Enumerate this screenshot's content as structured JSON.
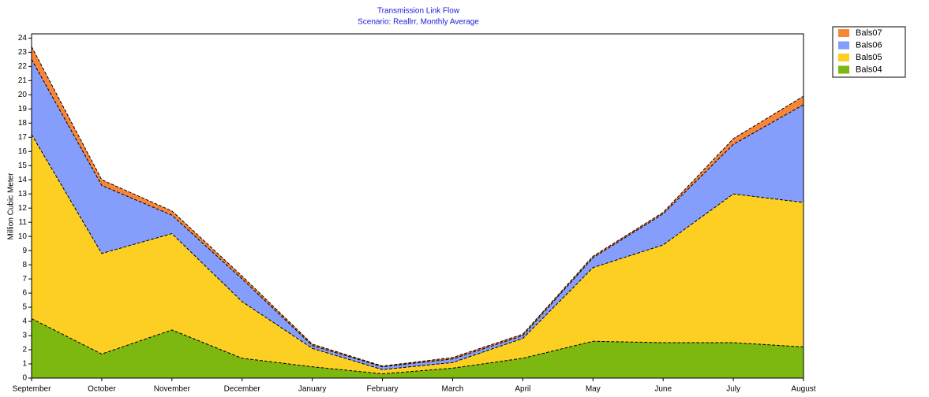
{
  "chart_data": {
    "type": "stacked-area",
    "title": "Transmission Link Flow",
    "subtitle": "Scenario: Reallrr,  Monthly Average",
    "y_label": "Million Cubic Meter",
    "categories": [
      "September",
      "October",
      "November",
      "December",
      "January",
      "February",
      "March",
      "April",
      "May",
      "June",
      "July",
      "August"
    ],
    "series": [
      {
        "name": "Bals04",
        "color": "#7cb810",
        "values": [
          4.2,
          1.7,
          3.4,
          1.4,
          0.8,
          0.3,
          0.7,
          1.4,
          2.6,
          2.5,
          2.5,
          2.2
        ]
      },
      {
        "name": "Bals05",
        "color": "#fccf22",
        "values": [
          13.0,
          7.1,
          6.8,
          4.0,
          1.3,
          0.3,
          0.4,
          1.4,
          5.2,
          6.9,
          10.5,
          10.2
        ]
      },
      {
        "name": "Bals06",
        "color": "#859dfb",
        "values": [
          5.3,
          4.8,
          1.3,
          1.6,
          0.2,
          0.2,
          0.25,
          0.2,
          0.7,
          2.2,
          3.5,
          6.9
        ]
      },
      {
        "name": "Bals07",
        "color": "#f98636",
        "values": [
          0.9,
          0.4,
          0.3,
          0.2,
          0.1,
          0.05,
          0.1,
          0.1,
          0.1,
          0.1,
          0.4,
          0.6
        ]
      }
    ],
    "ylim": [
      0,
      24.3
    ],
    "yticks": [
      0,
      1,
      2,
      3,
      4,
      5,
      6,
      7,
      8,
      9,
      10,
      11,
      12,
      13,
      14,
      15,
      16,
      17,
      18,
      19,
      20,
      21,
      22,
      23,
      24
    ],
    "legend": "right"
  }
}
